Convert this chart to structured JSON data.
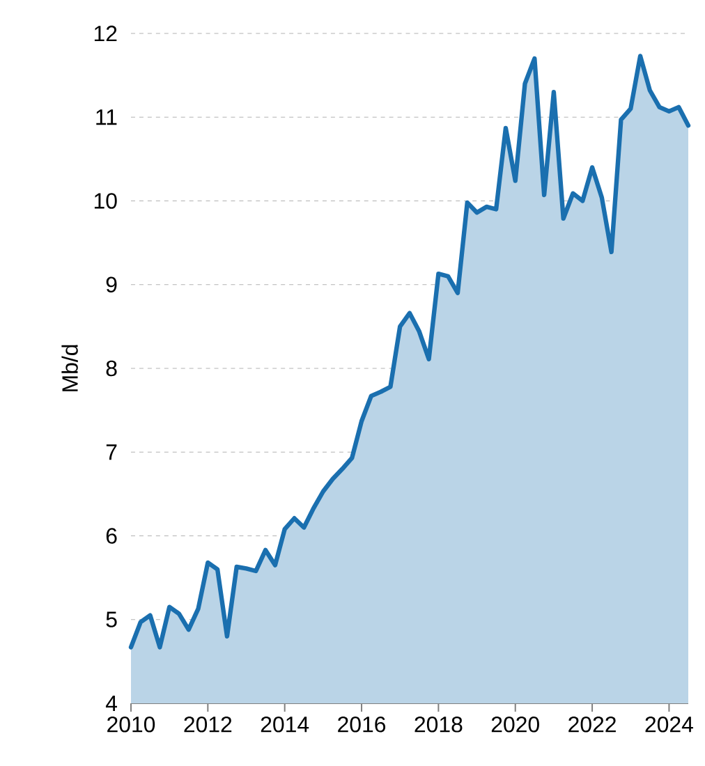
{
  "chart_data": {
    "type": "area",
    "ylabel": "Mb/d",
    "color": "#1a6faf",
    "x": [
      2010,
      2010.25,
      2010.5,
      2010.75,
      2011,
      2011.25,
      2011.5,
      2011.75,
      2012,
      2012.25,
      2012.5,
      2012.75,
      2013,
      2013.25,
      2013.5,
      2013.75,
      2014,
      2014.25,
      2014.5,
      2014.75,
      2015,
      2015.25,
      2015.5,
      2015.75,
      2016,
      2016.25,
      2016.5,
      2016.75,
      2017,
      2017.25,
      2017.5,
      2017.75,
      2018,
      2018.25,
      2018.5,
      2018.75,
      2019,
      2019.25,
      2019.5,
      2019.75,
      2020,
      2020.25,
      2020.5,
      2020.75,
      2021,
      2021.25,
      2021.5,
      2021.75,
      2022,
      2022.25,
      2022.5,
      2022.75,
      2023,
      2023.25,
      2023.5,
      2023.75,
      2024,
      2024.25,
      2024.5
    ],
    "values": [
      4.67,
      4.97,
      5.05,
      4.67,
      5.15,
      5.07,
      4.88,
      5.13,
      5.68,
      5.6,
      4.8,
      5.63,
      5.61,
      5.58,
      5.83,
      5.65,
      6.08,
      6.21,
      6.1,
      6.33,
      6.53,
      6.68,
      6.8,
      6.93,
      7.37,
      7.67,
      7.72,
      7.78,
      8.5,
      8.66,
      8.44,
      8.11,
      9.13,
      9.1,
      8.9,
      9.98,
      9.86,
      9.93,
      9.9,
      10.87,
      10.24,
      11.4,
      11.7,
      10.07,
      11.3,
      9.79,
      10.09,
      10.0,
      10.4,
      10.04,
      9.39,
      10.97,
      11.1,
      11.73,
      11.32,
      11.12,
      11.07,
      11.12,
      10.9
    ],
    "xlim": [
      2010,
      2024.5
    ],
    "xticks": [
      2010,
      2012,
      2014,
      2016,
      2018,
      2020,
      2022,
      2024
    ],
    "ylim": [
      4,
      12
    ],
    "yticks": [
      4,
      5,
      6,
      7,
      8,
      9,
      10,
      11,
      12
    ],
    "grid": "y",
    "marker": "none",
    "line_style": "solid"
  }
}
